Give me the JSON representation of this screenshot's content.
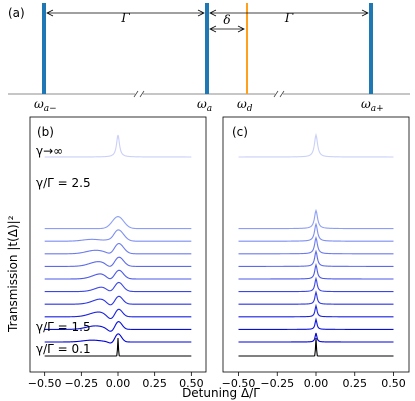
{
  "panel_a": {
    "label": "(a)",
    "levels": [
      {
        "id": "a_minus",
        "text": "ω",
        "sub": "a−",
        "color": "#1f77b4"
      },
      {
        "id": "a",
        "text": "ω",
        "sub": "a",
        "color": "#1f77b4"
      },
      {
        "id": "d",
        "text": "ω",
        "sub": "d",
        "color": "#ff9f1c"
      },
      {
        "id": "a_plus",
        "text": "ω",
        "sub": "a+",
        "color": "#1f77b4"
      }
    ],
    "arrows": [
      {
        "from": "a_minus",
        "to": "a",
        "label": "Γ"
      },
      {
        "from": "a",
        "to": "d",
        "label": "δ"
      },
      {
        "from": "a",
        "to": "a_plus",
        "label": "Γ"
      }
    ]
  },
  "chart_data": [
    {
      "type": "line",
      "panel_label": "(b)",
      "xlim": [
        -0.6,
        0.6
      ],
      "x_ticks": [
        "−0.50",
        "−0.25",
        "0.00",
        "0.25",
        "0.50"
      ],
      "tick_values": [
        -0.5,
        -0.25,
        0,
        0.25,
        0.5
      ],
      "annotations": [
        {
          "text": "γ→∞",
          "attach": "top"
        },
        {
          "text": "γ/Γ = 2.5",
          "attach": "upper"
        },
        {
          "text": "γ/Γ = 1.5",
          "attach": "lower"
        },
        {
          "text": "γ/Γ = 0.1",
          "attach": "bottom"
        }
      ],
      "curve_count": 12,
      "colors": [
        "#000000",
        "#0000d8",
        "#0a10dc",
        "#1a22df",
        "#2a34e2",
        "#3b46e5",
        "#4b58e8",
        "#5c6aeb",
        "#6c7cee",
        "#7d8ef1",
        "#8d9ff4",
        "#c9cff9"
      ],
      "shape": "fano"
    },
    {
      "type": "line",
      "panel_label": "(c)",
      "xlim": [
        -0.6,
        0.6
      ],
      "x_ticks": [
        "−0.50",
        "−0.25",
        "0.00",
        "0.25",
        "0.50"
      ],
      "tick_values": [
        -0.5,
        -0.25,
        0,
        0.25,
        0.5
      ],
      "curve_count": 12,
      "colors": [
        "#000000",
        "#0000d8",
        "#0a10dc",
        "#1a22df",
        "#2a34e2",
        "#3b46e5",
        "#4b58e8",
        "#5c6aeb",
        "#6c7cee",
        "#7d8ef1",
        "#8d9ff4",
        "#c9cff9"
      ],
      "shape": "lorentzian"
    }
  ],
  "axes": {
    "ylabel": "Transmission |t(Δ)|²",
    "xlabel": "Detuning Δ/Γ"
  }
}
